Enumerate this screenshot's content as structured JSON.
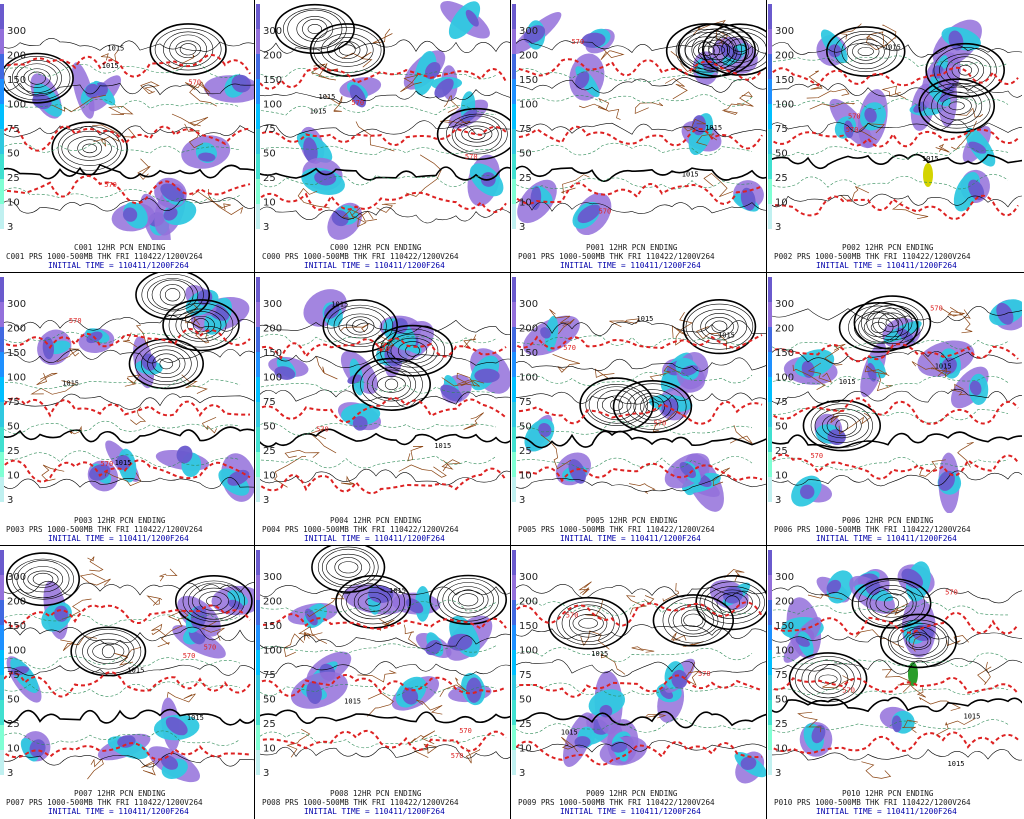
{
  "panels": [
    {
      "id": "C001",
      "title": "C001 12HR PCN ENDING",
      "line": "C001 PRS 1000-500MB THK FRI 110422/1200V264",
      "time": "INITIAL TIME = 110411/1200F264"
    },
    {
      "id": "C000",
      "title": "C000 12HR PCN ENDING",
      "line": "C000 PRS 1000-500MB THK FRI 110422/1200V264",
      "time": "INITIAL TIME = 110411/1200F264"
    },
    {
      "id": "P001",
      "title": "P001 12HR PCN ENDING",
      "line": "P001 PRS 1000-500MB THK FRI 110422/1200V264",
      "time": "INITIAL TIME = 110411/1200F264"
    },
    {
      "id": "P002",
      "title": "P002 12HR PCN ENDING",
      "line": "P002 PRS 1000-500MB THK FRI 110422/1200V264",
      "time": "INITIAL TIME = 110411/1200F264"
    },
    {
      "id": "P003",
      "title": "P003 12HR PCN ENDING",
      "line": "P003 PRS 1000-500MB THK FRI 110422/1200V264",
      "time": "INITIAL TIME = 110411/1200F264"
    },
    {
      "id": "P004",
      "title": "P004 12HR PCN ENDING",
      "line": "P004 PRS 1000-500MB THK FRI 110422/1200V264",
      "time": "INITIAL TIME = 110411/1200F264"
    },
    {
      "id": "P005",
      "title": "P005 12HR PCN ENDING",
      "line": "P005 PRS 1000-500MB THK FRI 110422/1200V264",
      "time": "INITIAL TIME = 110411/1200F264"
    },
    {
      "id": "P006",
      "title": "P006 12HR PCN ENDING",
      "line": "P006 PRS 1000-500MB THK FRI 110422/1200V264",
      "time": "INITIAL TIME = 110411/1200F264"
    },
    {
      "id": "P007",
      "title": "P007 12HR PCN ENDING",
      "line": "P007 PRS 1000-500MB THK FRI 110422/1200V264",
      "time": "INITIAL TIME = 110411/1200F264"
    },
    {
      "id": "P008",
      "title": "P008 12HR PCN ENDING",
      "line": "P008 PRS 1000-500MB THK FRI 110422/1200V264",
      "time": "INITIAL TIME = 110411/1200F264"
    },
    {
      "id": "P009",
      "title": "P009 12HR PCN ENDING",
      "line": "P009 PRS 1000-500MB THK FRI 110422/1200V264",
      "time": "INITIAL TIME = 110411/1200F264"
    },
    {
      "id": "P010",
      "title": "P010 12HR PCN ENDING",
      "line": "P010 PRS 1000-500MB THK FRI 110422/1200V264",
      "time": "INITIAL TIME = 110411/1200F264"
    }
  ],
  "colorbar_labels": [
    "300",
    "200",
    "150",
    "100",
    "75",
    "50",
    "25",
    "10",
    "3"
  ],
  "contour_labels": [
    "1015",
    "570",
    "1015",
    "570"
  ],
  "colors": {
    "heavy": "#6a5acd",
    "moderate": "#30c8e0",
    "light": "#9370db",
    "extreme": "#d4d400",
    "thickness": "#dd2222",
    "isobar": "#000000",
    "border": "#8b4513",
    "dashed_green": "#2e8b57",
    "caption_blue": "#0000aa"
  }
}
